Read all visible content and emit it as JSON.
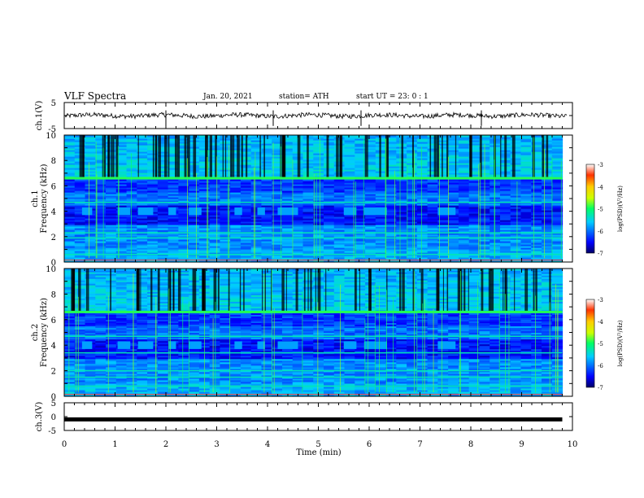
{
  "header": {
    "title": "VLF Spectra",
    "date": "Jan. 20, 2021",
    "station": "station= ATH",
    "start": "start  UT  =  23: 0  : 1"
  },
  "chart_data": [
    {
      "type": "line",
      "panel": "ch1-waveform",
      "ylabel": "ch.1(V)",
      "ylim": [
        -5,
        5
      ],
      "ytick_labels": [
        "5",
        "-5"
      ],
      "x": [
        0,
        10
      ],
      "values_note": "noisy trace near 0 V",
      "y": [
        0,
        0
      ]
    },
    {
      "type": "heatmap",
      "panel": "ch1-spectrogram",
      "ylabel": "ch.1\nFrequency (kHz)",
      "ylim": [
        0,
        10
      ],
      "ytick_labels": [
        "0",
        "2",
        "4",
        "6",
        "8",
        "10"
      ],
      "xlim": [
        0,
        9.8
      ],
      "colorbar": {
        "label": "log(PSD)(V²/Hz)",
        "range": [
          -7,
          -3
        ],
        "tick_labels": [
          "-3",
          "-4",
          "-5",
          "-6",
          "-7"
        ],
        "colors": [
          "#000066",
          "#0000ff",
          "#00ccff",
          "#00ff66",
          "#ccff00",
          "#ffcc00",
          "#ff3300",
          "#ffffff"
        ]
      },
      "strong_lines_khz": [
        6.6,
        4.7,
        2.3,
        1.9,
        0.6
      ],
      "band_4khz_segments_min": [
        [
          0.35,
          0.55
        ],
        [
          1.05,
          1.3
        ],
        [
          1.45,
          1.75
        ],
        [
          2.05,
          2.2
        ],
        [
          2.45,
          2.7
        ],
        [
          3.35,
          3.5
        ],
        [
          3.8,
          3.95
        ],
        [
          4.2,
          4.6
        ],
        [
          5.5,
          5.75
        ],
        [
          5.9,
          6.35
        ],
        [
          7.35,
          7.7
        ]
      ]
    },
    {
      "type": "heatmap",
      "panel": "ch2-spectrogram",
      "ylabel": "ch.2\nFrequency (kHz)",
      "ylim": [
        0,
        10
      ],
      "ytick_labels": [
        "0",
        "2",
        "4",
        "6",
        "8",
        "10"
      ],
      "xlim": [
        0,
        9.8
      ],
      "colorbar": {
        "label": "log(PSD)(V²/Hz)",
        "range": [
          -7,
          -3
        ],
        "tick_labels": [
          "-3",
          "-4",
          "-5",
          "-6",
          "-7"
        ],
        "colors": [
          "#000066",
          "#0000ff",
          "#00ccff",
          "#00ff66",
          "#ccff00",
          "#ffcc00",
          "#ff3300",
          "#ffffff"
        ]
      },
      "strong_lines_khz": [
        6.6,
        4.7,
        3.4,
        2.0,
        1.5,
        0.8
      ],
      "band_4khz_segments_min": [
        [
          0.35,
          0.55
        ],
        [
          1.05,
          1.3
        ],
        [
          1.45,
          1.75
        ],
        [
          2.05,
          2.2
        ],
        [
          2.45,
          2.7
        ],
        [
          3.35,
          3.5
        ],
        [
          3.8,
          3.95
        ],
        [
          4.2,
          4.6
        ],
        [
          5.5,
          5.75
        ],
        [
          5.9,
          6.35
        ],
        [
          7.35,
          7.7
        ]
      ]
    },
    {
      "type": "line",
      "panel": "ch3-waveform",
      "ylabel": "ch.3(V)",
      "ylim": [
        -5,
        5
      ],
      "ytick_labels": [
        "5",
        "0",
        "-5"
      ],
      "x": [
        0,
        9.8
      ],
      "y": [
        -1,
        -1
      ]
    }
  ],
  "xaxis": {
    "label": "Time  (min)",
    "tick_labels": [
      "0",
      "1",
      "2",
      "3",
      "4",
      "5",
      "6",
      "7",
      "8",
      "9",
      "10"
    ],
    "xlim": [
      0,
      10
    ]
  }
}
